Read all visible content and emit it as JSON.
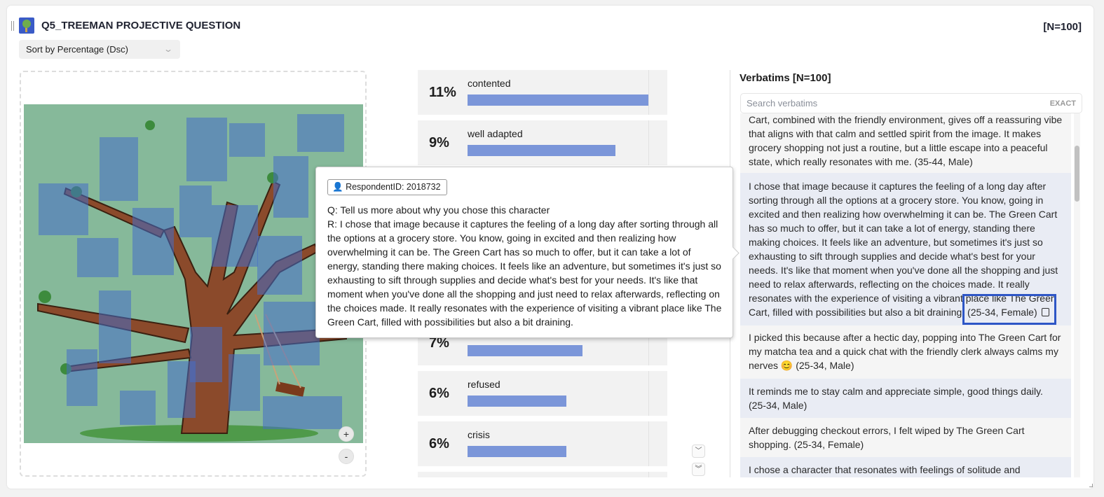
{
  "header": {
    "title": "Q5_TREEMAN PROJECTIVE QUESTION",
    "n_label": "[N=100]",
    "logo_icon": "tree-icon"
  },
  "sort": {
    "selected": "Sort by Percentage (Dsc)"
  },
  "image": {
    "zoom_in": "+",
    "zoom_out": "-"
  },
  "results": [
    {
      "pct_label": "11%",
      "pct": 11,
      "label": "contented"
    },
    {
      "pct_label": "9%",
      "pct": 9,
      "label": "well adapted"
    },
    {
      "pct_label": "7%",
      "pct": 7,
      "label": ""
    },
    {
      "pct_label": "6%",
      "pct": 6,
      "label": "refused"
    },
    {
      "pct_label": "6%",
      "pct": 6,
      "label": "crisis"
    }
  ],
  "bar_color": "#7b96d9",
  "verbatims": {
    "title": "Verbatims [N=100]",
    "search_placeholder": "Search verbatims",
    "exact_label": "EXACT",
    "items": [
      {
        "text": "Cart, combined with the friendly environment, gives off a reassuring vibe that aligns with that calm and settled spirit from the image. It makes grocery shopping not just a routine, but a little escape into a peaceful state, which really resonates with me. (35-44, Male)"
      },
      {
        "text": "I chose that image because it captures the feeling of a long day after sorting through all the options at a grocery store. You know, going in excited and then realizing how overwhelming it can be. The Green Cart has so much to offer, but it can take a lot of energy, standing there making choices. It feels like an adventure, but sometimes it's just so exhausting to sift through supplies and decide what's best for your needs. It's like that moment when you've done all the shopping and just need to relax afterwards, reflecting on the choices made. It really resonates with the experience of visiting a vibrant place like The Green Cart, filled with possibilities but also a bit draining. (25-34, Female)"
      },
      {
        "text": "I picked this because after a hectic day, popping into The Green Cart for my matcha tea and a quick chat with the friendly clerk always calms my nerves 😊 (25-34, Male)"
      },
      {
        "text": "It reminds me to stay calm and appreciate simple, good things daily. (25-34, Male)"
      },
      {
        "text": "After debugging checkout errors, I felt wiped by The Green Cart shopping. (25-34, Female)"
      },
      {
        "text": "I chose a character that resonates with feelings of solitude and"
      }
    ]
  },
  "tooltip": {
    "respondent": "RespondentID: 2018732",
    "question": "Q: Tell us more about why you chose this character",
    "response": "R: I chose that image because it captures the feeling of a long day after sorting through all the options at a grocery store. You know, going in excited and then realizing how overwhelming it can be. The Green Cart has so much to offer, but it can take a lot of energy, standing there making choices. It feels like an adventure, but sometimes it's just so exhausting to sift through supplies and decide what's best for your needs. It's like that moment when you've done all the shopping and just need to relax afterwards, reflecting on the choices made. It really resonates with the experience of visiting a vibrant place like The Green Cart, filled with possibilities but also a bit draining."
  }
}
